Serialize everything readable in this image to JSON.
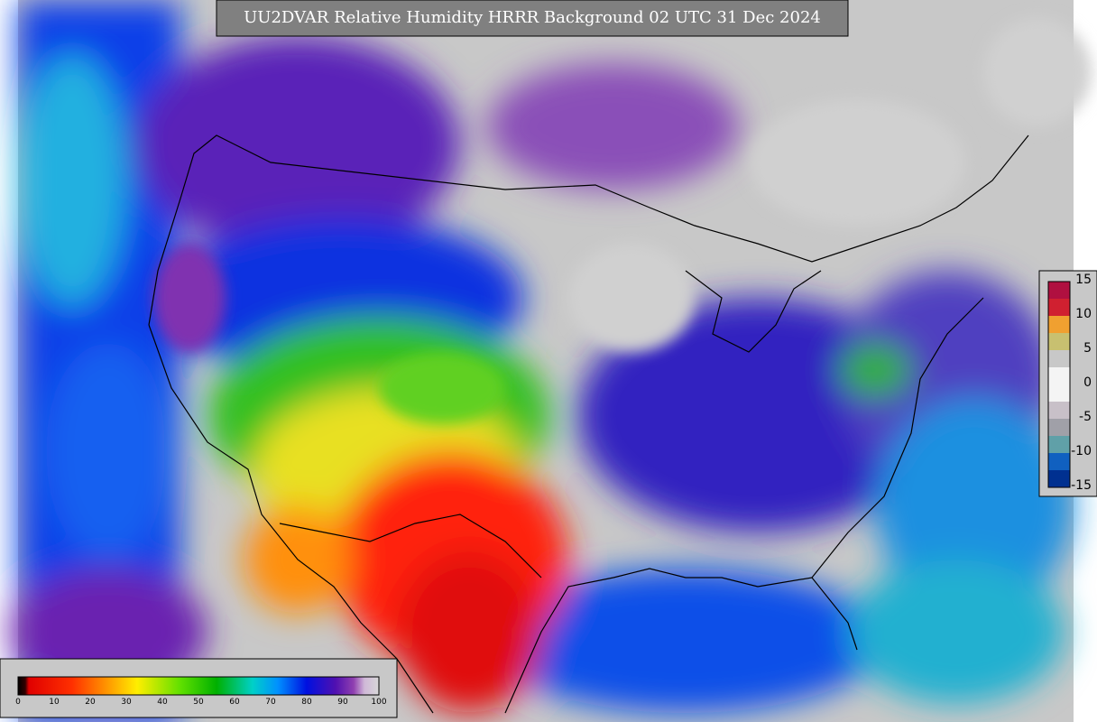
{
  "title": "UU2DVAR Relative Humidity HRRR Background  02 UTC 31 Dec 2024",
  "main_colorbar": {
    "ticks": [
      "0",
      "10",
      "20",
      "30",
      "40",
      "50",
      "60",
      "70",
      "80",
      "90",
      "100"
    ]
  },
  "side_colorbar": {
    "ticks": [
      "15",
      "10",
      "5",
      "0",
      "-5",
      "-10",
      "-15"
    ]
  }
}
